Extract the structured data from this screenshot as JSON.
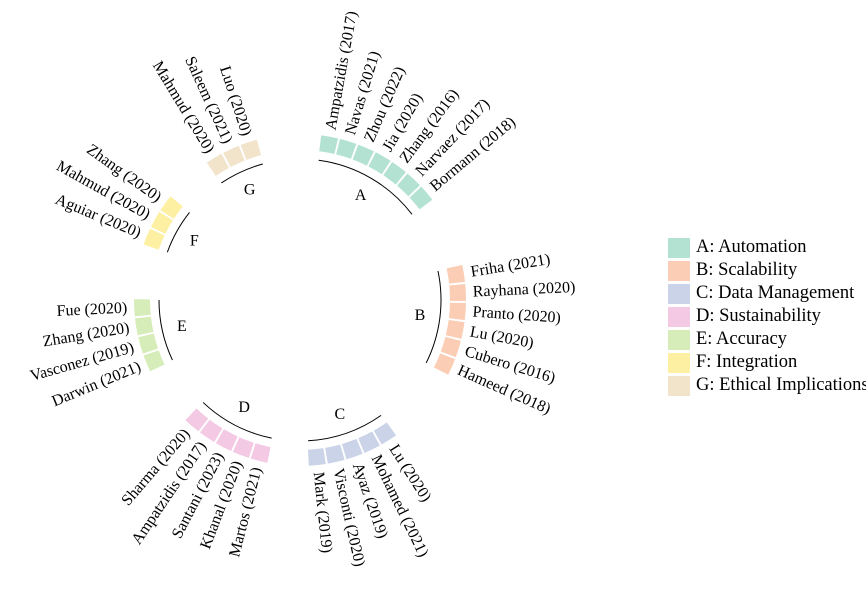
{
  "groups": [
    {
      "id": "A",
      "letter": "A",
      "color": "#b3e2d3",
      "authors": [
        "Ampatzidis (2017)",
        "Navas (2021)",
        "Zhou (2022)",
        "Jia (2020)",
        "Zhang (2016)",
        "Narvaez (2017)",
        "Bormann (2018)"
      ]
    },
    {
      "id": "B",
      "letter": "B",
      "color": "#fbcdb4",
      "authors": [
        "Friha (2021)",
        "Rayhana (2020)",
        "Pranto (2020)",
        "Lu (2020)",
        "Cubero (2016)",
        "Hameed (2018)"
      ]
    },
    {
      "id": "C",
      "letter": "C",
      "color": "#cad3e8",
      "authors": [
        "Lu (2020)",
        "Mohamed (2021)",
        "Ayaz (2019)",
        "Visconti (2020)",
        "Mark (2019)"
      ]
    },
    {
      "id": "D",
      "letter": "D",
      "color": "#f3c9e3",
      "authors": [
        "Martos (2021)",
        "Khanal (2020)",
        "Santani (2023)",
        "Ampatzidis (2017)",
        "Sharma (2020)"
      ]
    },
    {
      "id": "E",
      "letter": "E",
      "color": "#d6edb9",
      "authors": [
        "Darwin (2021)",
        "Vasconez (2019)",
        "Zhang (2020)",
        "Fue (2020)"
      ]
    },
    {
      "id": "F",
      "letter": "F",
      "color": "#fdf0a3",
      "authors": [
        "Aguiar (2020)",
        "Mahmud (2020)",
        "Zhang (2020)"
      ]
    },
    {
      "id": "G",
      "letter": "G",
      "color": "#f2e3cb",
      "authors": [
        "Mahmud (2020)",
        "Saleem (2021)",
        "Luo (2020)"
      ]
    }
  ],
  "legend": {
    "items": [
      {
        "label": "A: Automation",
        "color": "#b3e2d3"
      },
      {
        "label": "B: Scalability",
        "color": "#fbcdb4"
      },
      {
        "label": "C: Data Management",
        "color": "#cad3e8"
      },
      {
        "label": "D: Sustainability",
        "color": "#f3c9e3"
      },
      {
        "label": "E: Accuracy",
        "color": "#d6edb9"
      },
      {
        "label": "F: Integration",
        "color": "#fdf0a3"
      },
      {
        "label": "G: Ethical Implications",
        "color": "#f2e3cb"
      }
    ]
  }
}
